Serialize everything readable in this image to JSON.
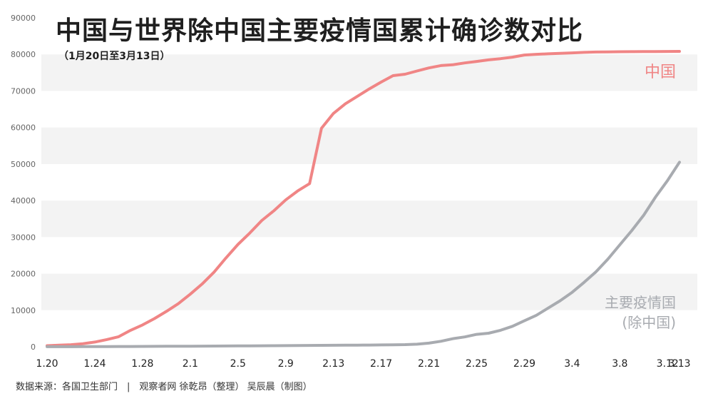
{
  "title": "中国与世界除中国主要疫情国累计确诊数对比",
  "subtitle": "（1月20日至3月13日）",
  "source": "数据来源：各国卫生部门　|　观察者网 徐乾昂（整理） 吴辰晨（制图）",
  "colors": {
    "china": "#f08585",
    "world": "#a8abb0",
    "band": "#f3f3f3",
    "axis_text": "#666666",
    "x_tick_text": "#222222"
  },
  "chart_data": {
    "type": "line",
    "title": "中国与世界除中国主要疫情国累计确诊数对比",
    "subtitle": "（1月20日至3月13日）",
    "xlabel": "",
    "ylabel": "",
    "ylim": [
      0,
      90000
    ],
    "y_ticks": [
      "0",
      "10000",
      "20000",
      "30000",
      "40000",
      "50000",
      "60000",
      "70000",
      "80000",
      "90000"
    ],
    "x_ticks": [
      "1.20",
      "1.24",
      "1.28",
      "2.1",
      "2.5",
      "2.9",
      "2.13",
      "2.17",
      "2.21",
      "2.25",
      "2.29",
      "3.4",
      "3.8",
      "3.12",
      "3.13"
    ],
    "grid": "alternating horizontal bands",
    "legend": "inline labels at right end of each line",
    "series": [
      {
        "name": "中国",
        "label_lines": [
          "中国"
        ],
        "color": "#f08585",
        "x": [
          "1.20",
          "1.21",
          "1.22",
          "1.23",
          "1.24",
          "1.25",
          "1.26",
          "1.27",
          "1.28",
          "1.29",
          "1.30",
          "1.31",
          "2.1",
          "2.2",
          "2.3",
          "2.4",
          "2.5",
          "2.6",
          "2.7",
          "2.8",
          "2.9",
          "2.10",
          "2.11",
          "2.12",
          "2.13",
          "2.14",
          "2.15",
          "2.16",
          "2.17",
          "2.18",
          "2.19",
          "2.20",
          "2.21",
          "2.22",
          "2.23",
          "2.24",
          "2.25",
          "2.26",
          "2.27",
          "2.28",
          "2.29",
          "3.1",
          "3.2",
          "3.3",
          "3.4",
          "3.5",
          "3.6",
          "3.7",
          "3.8",
          "3.9",
          "3.10",
          "3.11",
          "3.12",
          "3.13"
        ],
        "values": [
          291,
          440,
          571,
          830,
          1287,
          1975,
          2744,
          4515,
          5974,
          7711,
          9692,
          11791,
          14380,
          17205,
          20438,
          24324,
          28018,
          31161,
          34546,
          37198,
          40171,
          42638,
          44653,
          59804,
          63851,
          66492,
          68500,
          70548,
          72436,
          74185,
          74576,
          75465,
          76288,
          76936,
          77150,
          77658,
          78064,
          78497,
          78824,
          79251,
          79824,
          80026,
          80151,
          80270,
          80409,
          80552,
          80651,
          80695,
          80735,
          80754,
          80778,
          80793,
          80813,
          80824
        ]
      },
      {
        "name": "主要疫情国(除中国)",
        "label_lines": [
          "主要疫情国",
          "(除中国)"
        ],
        "color": "#a8abb0",
        "x": [
          "1.20",
          "1.21",
          "1.22",
          "1.23",
          "1.24",
          "1.25",
          "1.26",
          "1.27",
          "1.28",
          "1.29",
          "1.30",
          "1.31",
          "2.1",
          "2.2",
          "2.3",
          "2.4",
          "2.5",
          "2.6",
          "2.7",
          "2.8",
          "2.9",
          "2.10",
          "2.11",
          "2.12",
          "2.13",
          "2.14",
          "2.15",
          "2.16",
          "2.17",
          "2.18",
          "2.19",
          "2.20",
          "2.21",
          "2.22",
          "2.23",
          "2.24",
          "2.25",
          "2.26",
          "2.27",
          "2.28",
          "2.29",
          "3.1",
          "3.2",
          "3.3",
          "3.4",
          "3.5",
          "3.6",
          "3.7",
          "3.8",
          "3.9",
          "3.10",
          "3.11",
          "3.12",
          "3.13"
        ],
        "values": [
          10,
          10,
          20,
          30,
          40,
          60,
          70,
          80,
          90,
          110,
          130,
          150,
          160,
          180,
          190,
          220,
          240,
          260,
          280,
          300,
          320,
          350,
          380,
          400,
          410,
          430,
          450,
          470,
          500,
          540,
          590,
          700,
          1000,
          1500,
          2200,
          2700,
          3400,
          3700,
          4500,
          5600,
          7100,
          8600,
          10600,
          12600,
          14900,
          17600,
          20500,
          24000,
          27900,
          31800,
          36000,
          41000,
          45500,
          50500
        ]
      }
    ]
  }
}
